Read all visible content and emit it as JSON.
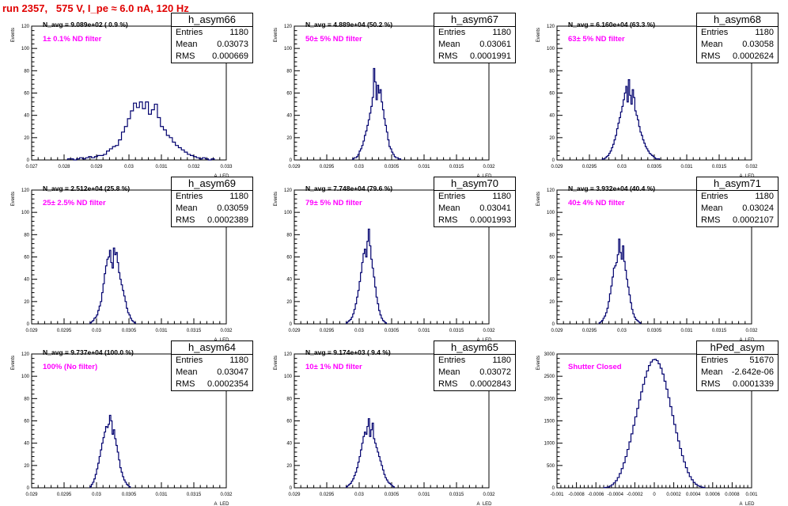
{
  "run_title": "run 2357,   575 V, I_pe ≈ 6.0 nA, 120 Hz",
  "colors": {
    "line": "#00006e",
    "annotation": "#ff00ff",
    "title": "#e00000"
  },
  "stat_labels": {
    "entries": "Entries",
    "mean": "Mean",
    "rms": "RMS"
  },
  "axis_labels": {
    "x": "A_LED",
    "y": "Events"
  },
  "chart_data": [
    {
      "type": "histogram",
      "name": "h_asym66",
      "entries": "1180",
      "mean": "0.03073",
      "rms": "0.000669",
      "header": "N_avg = 9.089e+02 ( 0.9 %)",
      "annotation": "1± 0.1% ND filter",
      "xlim": [
        0.027,
        0.0335
      ],
      "ylim": [
        0,
        120
      ],
      "xticks": [
        "0.027",
        "0.028",
        "0.029",
        "0.03",
        "0.031",
        "0.032",
        "0.033"
      ],
      "yticks": [
        "0",
        "20",
        "40",
        "60",
        "80",
        "100",
        "120"
      ],
      "bin_width": 0.0001,
      "bin_start": 0.0282,
      "counts": [
        1,
        1,
        0,
        1,
        2,
        1,
        2,
        3,
        2,
        3,
        4,
        4,
        5,
        8,
        10,
        12,
        13,
        18,
        25,
        30,
        37,
        44,
        51,
        47,
        52,
        46,
        52,
        41,
        45,
        50,
        38,
        30,
        27,
        22,
        20,
        16,
        13,
        11,
        9,
        7,
        5,
        4,
        3,
        2,
        1,
        2,
        1,
        0,
        1
      ]
    },
    {
      "type": "histogram",
      "name": "h_asym67",
      "entries": "1180",
      "mean": "0.03061",
      "rms": "0.0001991",
      "header": "N_avg = 4.889e+04 (50.2 %)",
      "annotation": "50± 5% ND filter",
      "xlim": [
        0.029,
        0.032
      ],
      "ylim": [
        0,
        120
      ],
      "xticks": [
        "0.029",
        "0.0295",
        "0.03",
        "0.0305",
        "0.031",
        "0.0315",
        "0.032"
      ],
      "yticks": [
        "0",
        "20",
        "40",
        "60",
        "80",
        "100",
        "120"
      ],
      "bin_width": 2e-05,
      "bin_start": 0.0299,
      "counts": [
        1,
        2,
        2,
        3,
        5,
        8,
        10,
        13,
        17,
        22,
        26,
        31,
        36,
        42,
        48,
        56,
        82,
        70,
        54,
        67,
        60,
        63,
        52,
        45,
        37,
        31,
        25,
        18,
        12,
        10,
        7,
        5,
        3,
        2,
        2,
        1,
        1
      ]
    },
    {
      "type": "histogram",
      "name": "h_asym68",
      "entries": "1180",
      "mean": "0.03058",
      "rms": "0.0002624",
      "header": "N_avg = 6.160e+04 (63.3 %)",
      "annotation": "63± 5% ND filter",
      "xlim": [
        0.029,
        0.032
      ],
      "ylim": [
        0,
        120
      ],
      "xticks": [
        "0.029",
        "0.0295",
        "0.03",
        "0.0305",
        "0.031",
        "0.0315",
        "0.032"
      ],
      "yticks": [
        "0",
        "20",
        "40",
        "60",
        "80",
        "100",
        "120"
      ],
      "bin_width": 2e-05,
      "bin_start": 0.0297,
      "counts": [
        1,
        1,
        2,
        3,
        4,
        6,
        8,
        11,
        14,
        18,
        22,
        28,
        33,
        38,
        43,
        48,
        54,
        60,
        66,
        52,
        72,
        58,
        50,
        63,
        56,
        44,
        40,
        36,
        30,
        25,
        22,
        18,
        15,
        12,
        10,
        8,
        6,
        5,
        4,
        3,
        2,
        1,
        1,
        1
      ]
    },
    {
      "type": "histogram",
      "name": "h_asym69",
      "entries": "1180",
      "mean": "0.03059",
      "rms": "0.0002389",
      "header": "N_avg = 2.512e+04 (25.8 %)",
      "annotation": "25± 2.5% ND filter",
      "xlim": [
        0.029,
        0.032
      ],
      "ylim": [
        0,
        120
      ],
      "xticks": [
        "0.029",
        "0.0295",
        "0.03",
        "0.0305",
        "0.031",
        "0.0315",
        "0.032"
      ],
      "yticks": [
        "0",
        "20",
        "40",
        "60",
        "80",
        "100",
        "120"
      ],
      "bin_width": 2e-05,
      "bin_start": 0.0299,
      "counts": [
        1,
        2,
        3,
        5,
        6,
        8,
        12,
        16,
        20,
        28,
        36,
        45,
        52,
        58,
        60,
        66,
        55,
        50,
        68,
        62,
        64,
        55,
        46,
        40,
        35,
        30,
        25,
        20,
        14,
        10,
        8,
        5,
        3,
        2,
        1
      ]
    },
    {
      "type": "histogram",
      "name": "h_asym70",
      "entries": "1180",
      "mean": "0.03041",
      "rms": "0.0001993",
      "header": "N_avg = 7.748e+04 (79.6 %)",
      "annotation": "79± 5% ND filter",
      "xlim": [
        0.029,
        0.032
      ],
      "ylim": [
        0,
        120
      ],
      "xticks": [
        "0.029",
        "0.0295",
        "0.03",
        "0.0305",
        "0.031",
        "0.0315",
        "0.032"
      ],
      "yticks": [
        "0",
        "20",
        "40",
        "60",
        "80",
        "100",
        "120"
      ],
      "bin_width": 2e-05,
      "bin_start": 0.0298,
      "counts": [
        1,
        2,
        3,
        4,
        6,
        9,
        13,
        18,
        24,
        30,
        38,
        46,
        55,
        63,
        67,
        60,
        74,
        85,
        70,
        58,
        50,
        42,
        33,
        24,
        18,
        12,
        8,
        5,
        3,
        2,
        1
      ]
    },
    {
      "type": "histogram",
      "name": "h_asym71",
      "entries": "1180",
      "mean": "0.03024",
      "rms": "0.0002107",
      "header": "N_avg = 3.932e+04 (40.4 %)",
      "annotation": "40± 4% ND filter",
      "xlim": [
        0.029,
        0.032
      ],
      "ylim": [
        0,
        120
      ],
      "xticks": [
        "0.029",
        "0.0295",
        "0.03",
        "0.0305",
        "0.031",
        "0.0315",
        "0.032"
      ],
      "yticks": [
        "0",
        "20",
        "40",
        "60",
        "80",
        "100",
        "120"
      ],
      "bin_width": 2e-05,
      "bin_start": 0.02965,
      "counts": [
        1,
        2,
        3,
        5,
        7,
        10,
        14,
        20,
        27,
        34,
        42,
        50,
        52,
        55,
        62,
        76,
        64,
        58,
        70,
        56,
        48,
        40,
        33,
        26,
        19,
        13,
        9,
        6,
        4,
        3,
        2,
        1
      ]
    },
    {
      "type": "histogram",
      "name": "h_asym64",
      "entries": "1180",
      "mean": "0.03047",
      "rms": "0.0002354",
      "header": "N_avg = 9.737e+04 (100.0 %)",
      "annotation": "100% (No filter)",
      "xlim": [
        0.029,
        0.032
      ],
      "ylim": [
        0,
        120
      ],
      "xticks": [
        "0.029",
        "0.0295",
        "0.03",
        "0.0305",
        "0.031",
        "0.0315",
        "0.032"
      ],
      "yticks": [
        "0",
        "20",
        "40",
        "60",
        "80",
        "100",
        "120"
      ],
      "bin_width": 2e-05,
      "bin_start": 0.0299,
      "counts": [
        1,
        3,
        5,
        8,
        12,
        17,
        22,
        28,
        34,
        40,
        45,
        50,
        55,
        54,
        57,
        65,
        60,
        48,
        52,
        44,
        38,
        32,
        25,
        18,
        14,
        10,
        7,
        5,
        3,
        2,
        1
      ]
    },
    {
      "type": "histogram",
      "name": "h_asym65",
      "entries": "1180",
      "mean": "0.03072",
      "rms": "0.0002843",
      "header": "N_avg = 9.174e+03 ( 9.4 %)",
      "annotation": "10± 1% ND filter",
      "xlim": [
        0.029,
        0.032
      ],
      "ylim": [
        0,
        120
      ],
      "xticks": [
        "0.029",
        "0.0295",
        "0.03",
        "0.0305",
        "0.031",
        "0.0315",
        "0.032"
      ],
      "yticks": [
        "0",
        "20",
        "40",
        "60",
        "80",
        "100",
        "120"
      ],
      "bin_width": 2e-05,
      "bin_start": 0.0298,
      "counts": [
        1,
        2,
        3,
        4,
        6,
        8,
        11,
        14,
        18,
        23,
        28,
        34,
        40,
        46,
        50,
        48,
        55,
        62,
        46,
        52,
        58,
        44,
        40,
        36,
        32,
        28,
        24,
        20,
        16,
        12,
        9,
        7,
        5,
        4,
        3,
        2,
        1
      ]
    },
    {
      "type": "histogram",
      "name": "hPed_asym",
      "entries": "51670",
      "mean": "-2.642e-06",
      "rms": "0.0001339",
      "header": "",
      "annotation": "Shutter Closed",
      "xlim": [
        -0.001,
        0.001
      ],
      "ylim": [
        0,
        3000
      ],
      "xticks": [
        "-0.001",
        "-0.0008",
        "-0.0006",
        "-0.0004",
        "-0.0002",
        "0",
        "0.0002",
        "0.0004",
        "0.0006",
        "0.0008",
        "0.001"
      ],
      "yticks": [
        "0",
        "500",
        "1000",
        "1500",
        "2000",
        "2500",
        "3000"
      ],
      "bin_width": 2e-05,
      "bin_start": -0.00052,
      "counts": [
        5,
        10,
        20,
        40,
        70,
        110,
        160,
        230,
        320,
        430,
        560,
        700,
        860,
        1030,
        1210,
        1400,
        1590,
        1780,
        1970,
        2150,
        2320,
        2480,
        2620,
        2740,
        2820,
        2870,
        2880,
        2850,
        2780,
        2680,
        2550,
        2390,
        2210,
        2020,
        1820,
        1620,
        1420,
        1230,
        1050,
        880,
        720,
        580,
        450,
        340,
        250,
        180,
        120,
        80,
        50,
        30,
        15,
        8
      ]
    }
  ]
}
